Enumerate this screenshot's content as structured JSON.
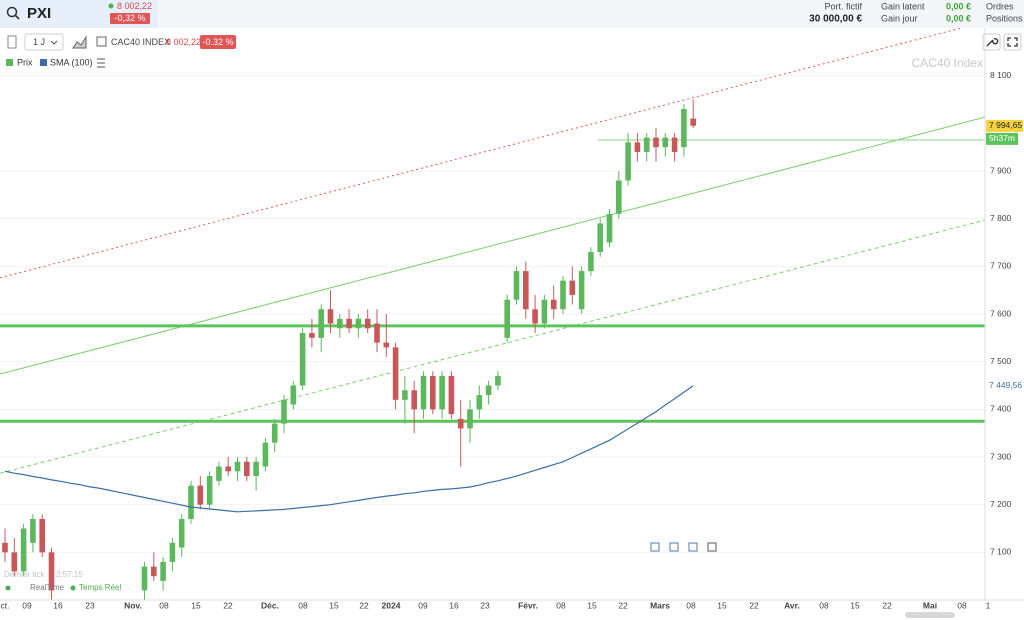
{
  "header": {
    "symbol": "PXI",
    "price": "8 002,22",
    "change": "-0,32 %",
    "portfolio_label": "Port. fictif",
    "portfolio_value": "30 000,00 €",
    "gain_latent_label": "Gain latent",
    "gain_latent": "0,00 €",
    "gain_jour_label": "Gain jour",
    "gain_jour": "0,00 €",
    "orders": "Ordres",
    "positions": "Positions"
  },
  "toolbar": {
    "interval": "1 J",
    "instrument": "CAC40 INDEX",
    "price": "8 002,22",
    "change": "-0.32 %"
  },
  "chart_data": {
    "type": "candlestick",
    "watermark": "CAC40 Index",
    "ylim": [
      7000,
      8200
    ],
    "yticks": [
      {
        "value": 7100,
        "label": "7 100"
      },
      {
        "value": 7200,
        "label": "7 200"
      },
      {
        "value": 7300,
        "label": "7 300"
      },
      {
        "value": 7400,
        "label": "7 400"
      },
      {
        "value": 7500,
        "label": "7 500"
      },
      {
        "value": 7600,
        "label": "7 600"
      },
      {
        "value": 7700,
        "label": "7 700"
      },
      {
        "value": 7800,
        "label": "7 800"
      },
      {
        "value": 7900,
        "label": "7 900"
      },
      {
        "value": 8100,
        "label": "8 100"
      }
    ],
    "xticks": [
      "ct.",
      "09",
      "16",
      "23",
      "Nov.",
      "08",
      "15",
      "22",
      "Déc.",
      "08",
      "15",
      "22",
      "2024",
      "09",
      "16",
      "23",
      "Févr.",
      "08",
      "15",
      "22",
      "Mars",
      "08",
      "15",
      "22",
      "Avr.",
      "08",
      "15",
      "22",
      "Mai",
      "08",
      "1"
    ],
    "series": [
      {
        "name": "Prix",
        "color_up": "#5cb85c",
        "color_down": "#c9575a",
        "open": [
          7120,
          7100,
          7060,
          7120,
          7170,
          7100,
          null,
          null,
          null,
          null,
          null,
          null,
          null,
          null,
          null,
          7020,
          7070,
          7040,
          7080,
          7110,
          7170,
          7240,
          7200,
          7250,
          7280,
          7270,
          7290,
          7260,
          7280,
          7330,
          7370,
          7410,
          7450,
          7560,
          7550,
          7610,
          7570,
          7590,
          7570,
          7590,
          7580,
          7540,
          7530,
          7420,
          7440,
          7400,
          7470,
          7400,
          7470,
          7380,
          7360,
          7400,
          7430,
          7450,
          7550,
          7630,
          7690,
          7610,
          7580,
          7630,
          7610,
          7670,
          7610,
          7690,
          7730,
          7750,
          7810,
          7880,
          7960,
          7940,
          7970,
          7950,
          7970,
          7950,
          8010
        ],
        "high": [
          7150,
          7130,
          7160,
          7180,
          7180,
          7110,
          null,
          null,
          null,
          null,
          null,
          null,
          null,
          null,
          null,
          7080,
          7100,
          7090,
          7130,
          7180,
          7250,
          7260,
          7270,
          7290,
          7300,
          7300,
          7300,
          7300,
          7340,
          7380,
          7430,
          7460,
          7570,
          7590,
          7620,
          7650,
          7600,
          7610,
          7600,
          7610,
          7610,
          7600,
          7540,
          7470,
          7460,
          7480,
          7480,
          7480,
          7480,
          7420,
          7420,
          7450,
          7460,
          7480,
          7640,
          7700,
          7710,
          7640,
          7640,
          7660,
          7680,
          7700,
          7700,
          7740,
          7800,
          7820,
          7900,
          7980,
          7980,
          7980,
          7990,
          7980,
          7980,
          8040,
          8050
        ],
        "low": [
          7080,
          7050,
          7050,
          7100,
          7090,
          7000,
          null,
          null,
          null,
          null,
          null,
          null,
          null,
          null,
          null,
          7000,
          7040,
          7020,
          7060,
          7090,
          7160,
          7190,
          7190,
          7240,
          7260,
          7250,
          7250,
          7230,
          7270,
          7310,
          7350,
          7400,
          7440,
          7530,
          7520,
          7560,
          7550,
          7560,
          7550,
          7560,
          7520,
          7510,
          7400,
          7370,
          7350,
          7380,
          7390,
          7380,
          7380,
          7280,
          7330,
          7380,
          7410,
          7440,
          7540,
          7620,
          7590,
          7560,
          7570,
          7590,
          7600,
          7620,
          7600,
          7680,
          7720,
          7740,
          7800,
          7870,
          7920,
          7920,
          7920,
          7930,
          7920,
          7930,
          7990
        ],
        "close": [
          7100,
          7060,
          7150,
          7170,
          7100,
          7020,
          null,
          null,
          null,
          null,
          null,
          null,
          null,
          null,
          null,
          7070,
          7050,
          7080,
          7120,
          7170,
          7240,
          7200,
          7260,
          7280,
          7270,
          7290,
          7260,
          7290,
          7330,
          7370,
          7420,
          7450,
          7560,
          7550,
          7610,
          7580,
          7590,
          7570,
          7590,
          7570,
          7540,
          7530,
          7420,
          7440,
          7400,
          7470,
          7400,
          7470,
          7390,
          7360,
          7400,
          7430,
          7450,
          7470,
          7630,
          7690,
          7610,
          7580,
          7630,
          7610,
          7670,
          7640,
          7690,
          7730,
          7790,
          7810,
          7880,
          7960,
          7940,
          7970,
          7950,
          7970,
          7940,
          8030,
          7995
        ]
      },
      {
        "name": "SMA (100)",
        "color": "#3b6ea5",
        "values": [
          7270,
          7266,
          7263,
          7259,
          7256,
          7252,
          7249,
          7245,
          7242,
          7238,
          7235,
          7231,
          7227,
          7223,
          7219,
          7215,
          7211,
          7207,
          7203,
          7199,
          7195,
          7193,
          7191,
          7189,
          7187,
          7185,
          7186,
          7187,
          7188,
          7189,
          7190,
          7192,
          7194,
          7196,
          7198,
          7200,
          7203,
          7206,
          7209,
          7212,
          7215,
          7218,
          7220,
          7223,
          7225,
          7228,
          7230,
          7232,
          7233,
          7235,
          7237,
          7241,
          7246,
          7250,
          7255,
          7260,
          7266,
          7272,
          7278,
          7284,
          7290,
          7299,
          7308,
          7317,
          7326,
          7335,
          7347,
          7359,
          7371,
          7383,
          7395,
          7409,
          7422,
          7436,
          7449.56
        ],
        "last_label": "7 449,56"
      }
    ],
    "last_price": 7994.65,
    "last_price_label": "7 994,65",
    "countdown": "5h37m",
    "trendlines": [
      {
        "color": "#e05a4a",
        "style": "dotted",
        "start": 7676,
        "end": 8213
      },
      {
        "color": "#7ccf6f",
        "style": "solid",
        "start": 7474,
        "end": 8013
      },
      {
        "color": "#7ccf6f",
        "style": "dashed",
        "start": 7266,
        "end": 7797
      }
    ],
    "levels": [
      {
        "color": "#5cc45a",
        "value": 7575
      },
      {
        "color": "#5cc45a",
        "value": 7375
      }
    ],
    "marker_level": {
      "color": "#8fd68a",
      "value": 7965
    }
  },
  "footer": {
    "last_tick": "Dernier tick",
    "time": "2:57:15",
    "realtime": "RealTime",
    "temps_reel": "Temps Réel"
  }
}
